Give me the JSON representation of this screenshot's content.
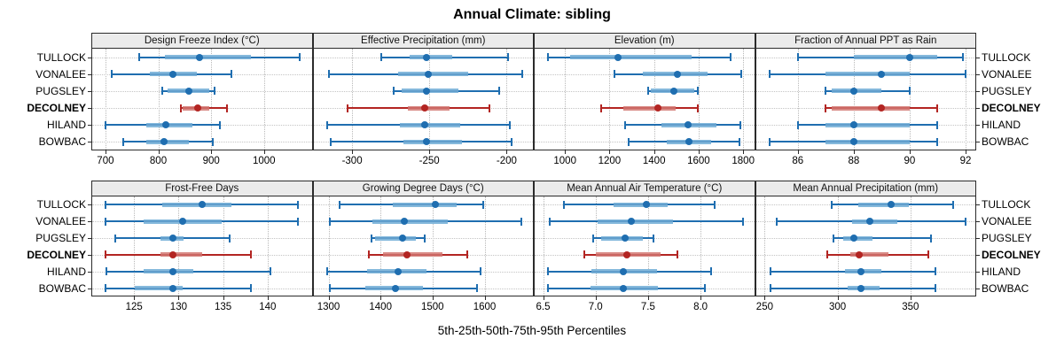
{
  "title": "Annual Climate: sibling",
  "caption": "5th-25th-50th-75th-95th Percentiles",
  "sites": [
    "TULLOCK",
    "VONALEE",
    "PUGSLEY",
    "DECOLNEY",
    "HILAND",
    "BOWBAC"
  ],
  "highlight_site": "DECOLNEY",
  "colors": {
    "series_main": "#1f6eb0",
    "series_light": "#85b9dc",
    "highlight_main": "#b32522",
    "highlight_light": "#d98b86",
    "grid": "#bdbdbd",
    "header_bg": "#ebebeb",
    "panel_border": "#2b2b2b"
  },
  "chart_data": {
    "type": "dotplot",
    "layout": {
      "rows": 2,
      "cols": 4,
      "grid": "dotted",
      "row_labels_both_sides": true
    },
    "percentile_labels": [
      "5th",
      "25th",
      "50th",
      "75th",
      "95th"
    ],
    "sites": [
      "TULLOCK",
      "VONALEE",
      "PUGSLEY",
      "DECOLNEY",
      "HILAND",
      "BOWBAC"
    ],
    "panels": [
      {
        "title": "Design Freeze Index (°C)",
        "xlim": [
          675,
          1090
        ],
        "ticks": [
          700,
          800,
          900,
          1000
        ],
        "tick_labels": [
          "700",
          "800",
          "900",
          "1000"
        ],
        "series": [
          {
            "site": "TULLOCK",
            "p": [
              763,
              812,
              878,
              975,
              1067
            ]
          },
          {
            "site": "VONALEE",
            "p": [
              711,
              784,
              828,
              872,
              939
            ]
          },
          {
            "site": "PUGSLEY",
            "p": [
              808,
              818,
              858,
              896,
              906
            ]
          },
          {
            "site": "DECOLNEY",
            "p": [
              842,
              846,
              875,
              897,
              929
            ]
          },
          {
            "site": "HILAND",
            "p": [
              700,
              778,
              814,
              864,
              917
            ]
          },
          {
            "site": "BOWBAC",
            "p": [
              733,
              778,
              811,
              858,
              903
            ]
          }
        ]
      },
      {
        "title": "Effective Precipitation (mm)",
        "xlim": [
          -325,
          -183
        ],
        "ticks": [
          -300,
          -250,
          -200
        ],
        "tick_labels": [
          "-300",
          "-250",
          "-200"
        ],
        "series": [
          {
            "site": "TULLOCK",
            "p": [
              -281,
              -263,
              -252,
              -235,
              -199
            ]
          },
          {
            "site": "VONALEE",
            "p": [
              -315,
              -270,
              -251,
              -225,
              -190
            ]
          },
          {
            "site": "PUGSLEY",
            "p": [
              -273,
              -268,
              -252,
              -231,
              -205
            ]
          },
          {
            "site": "DECOLNEY",
            "p": [
              -303,
              -264,
              -253,
              -237,
              -211
            ]
          },
          {
            "site": "HILAND",
            "p": [
              -316,
              -269,
              -253,
              -230,
              -198
            ]
          },
          {
            "site": "BOWBAC",
            "p": [
              -314,
              -267,
              -252,
              -229,
              -197
            ]
          }
        ]
      },
      {
        "title": "Elevation (m)",
        "xlim": [
          864,
          1849
        ],
        "ticks": [
          1000,
          1200,
          1400,
          1600,
          1800
        ],
        "tick_labels": [
          "1000",
          "1200",
          "1400",
          "1600",
          "1800"
        ],
        "series": [
          {
            "site": "TULLOCK",
            "p": [
              924,
              1022,
              1236,
              1569,
              1745
            ]
          },
          {
            "site": "VONALEE",
            "p": [
              1220,
              1349,
              1506,
              1642,
              1793
            ]
          },
          {
            "site": "PUGSLEY",
            "p": [
              1372,
              1385,
              1488,
              1580,
              1598
            ]
          },
          {
            "site": "DECOLNEY",
            "p": [
              1161,
              1260,
              1418,
              1498,
              1596
            ]
          },
          {
            "site": "HILAND",
            "p": [
              1270,
              1431,
              1553,
              1681,
              1787
            ]
          },
          {
            "site": "BOWBAC",
            "p": [
              1286,
              1458,
              1556,
              1655,
              1783
            ]
          }
        ]
      },
      {
        "title": "Fraction of Annual PPT as Rain",
        "xlim": [
          84.5,
          92.35
        ],
        "ticks": [
          86,
          88,
          90,
          92
        ],
        "tick_labels": [
          "86",
          "88",
          "90",
          "92"
        ],
        "series": [
          {
            "site": "TULLOCK",
            "p": [
              86.0,
              88.0,
              90.0,
              91.0,
              91.9
            ]
          },
          {
            "site": "VONALEE",
            "p": [
              85.0,
              87.0,
              89.0,
              90.0,
              92.0
            ]
          },
          {
            "site": "PUGSLEY",
            "p": [
              87.0,
              87.2,
              88.0,
              89.0,
              90.0
            ]
          },
          {
            "site": "DECOLNEY",
            "p": [
              87.0,
              87.2,
              89.0,
              90.0,
              91.0
            ]
          },
          {
            "site": "HILAND",
            "p": [
              86.0,
              87.0,
              88.0,
              90.0,
              91.0
            ]
          },
          {
            "site": "BOWBAC",
            "p": [
              85.0,
              87.0,
              88.0,
              90.0,
              91.0
            ]
          }
        ]
      },
      {
        "title": "Frost-Free Days",
        "xlim": [
          120.3,
          144.95
        ],
        "ticks": [
          125,
          130,
          135,
          140
        ],
        "tick_labels": [
          "125",
          "130",
          "135",
          "140"
        ],
        "series": [
          {
            "site": "TULLOCK",
            "p": [
              121.8,
              128.2,
              132.6,
              135.9,
              143.4
            ]
          },
          {
            "site": "VONALEE",
            "p": [
              121.8,
              126.1,
              130.5,
              134.8,
              143.4
            ]
          },
          {
            "site": "PUGSLEY",
            "p": [
              122.9,
              128.0,
              129.4,
              130.6,
              135.7
            ]
          },
          {
            "site": "DECOLNEY",
            "p": [
              121.8,
              128.0,
              129.4,
              132.7,
              138.1
            ]
          },
          {
            "site": "HILAND",
            "p": [
              121.9,
              126.1,
              129.4,
              131.7,
              140.3
            ]
          },
          {
            "site": "BOWBAC",
            "p": [
              121.8,
              125.1,
              129.4,
              130.5,
              138.1
            ]
          }
        ]
      },
      {
        "title": "Growing Degree Days (°C)",
        "xlim": [
          1271,
          1693
        ],
        "ticks": [
          1300,
          1400,
          1500,
          1600
        ],
        "tick_labels": [
          "1300",
          "1400",
          "1500",
          "1600"
        ],
        "series": [
          {
            "site": "TULLOCK",
            "p": [
              1322,
              1423,
              1505,
              1547,
              1597
            ]
          },
          {
            "site": "VONALEE",
            "p": [
              1303,
              1384,
              1446,
              1530,
              1671
            ]
          },
          {
            "site": "PUGSLEY",
            "p": [
              1382,
              1390,
              1442,
              1468,
              1485
            ]
          },
          {
            "site": "DECOLNEY",
            "p": [
              1378,
              1404,
              1450,
              1519,
              1567
            ]
          },
          {
            "site": "HILAND",
            "p": [
              1297,
              1374,
              1433,
              1488,
              1592
            ]
          },
          {
            "site": "BOWBAC",
            "p": [
              1302,
              1370,
              1428,
              1481,
              1586
            ]
          }
        ]
      },
      {
        "title": "Mean Annual Air Temperature (°C)",
        "xlim": [
          6.42,
          8.51
        ],
        "ticks": [
          6.5,
          7.0,
          7.5,
          8.0
        ],
        "tick_labels": [
          "6.5",
          "7.0",
          "7.5",
          "8.0"
        ],
        "series": [
          {
            "site": "TULLOCK",
            "p": [
              6.7,
              7.17,
              7.48,
              7.69,
              8.13
            ]
          },
          {
            "site": "VONALEE",
            "p": [
              6.56,
              7.02,
              7.34,
              7.74,
              8.4
            ]
          },
          {
            "site": "PUGSLEY",
            "p": [
              6.98,
              7.05,
              7.28,
              7.45,
              7.55
            ]
          },
          {
            "site": "DECOLNEY",
            "p": [
              6.89,
              7.0,
              7.3,
              7.62,
              7.78
            ]
          },
          {
            "site": "HILAND",
            "p": [
              6.55,
              6.96,
              7.26,
              7.59,
              8.1
            ]
          },
          {
            "site": "BOWBAC",
            "p": [
              6.55,
              6.95,
              7.26,
              7.59,
              8.04
            ]
          }
        ]
      },
      {
        "title": "Mean Annual Precipitation (mm)",
        "xlim": [
          244,
          394.5
        ],
        "ticks": [
          250,
          300,
          350
        ],
        "tick_labels": [
          "250",
          "300",
          "350"
        ],
        "series": [
          {
            "site": "TULLOCK",
            "p": [
              296,
              314,
              337,
              349,
              379
            ]
          },
          {
            "site": "VONALEE",
            "p": [
              258,
              310,
              322,
              341,
              388
            ]
          },
          {
            "site": "PUGSLEY",
            "p": [
              297,
              304,
              311,
              324,
              364
            ]
          },
          {
            "site": "DECOLNEY",
            "p": [
              293,
              309,
              315,
              335,
              362
            ]
          },
          {
            "site": "HILAND",
            "p": [
              254,
              305,
              316,
              330,
              367
            ]
          },
          {
            "site": "BOWBAC",
            "p": [
              254,
              307,
              316,
              329,
              367
            ]
          }
        ]
      }
    ]
  }
}
